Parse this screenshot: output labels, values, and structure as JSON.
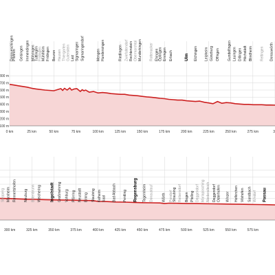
{
  "chart_data": [
    {
      "type": "area",
      "title": "",
      "xlabel": "",
      "ylabel": "",
      "xlim": [
        0,
        300
      ],
      "ylim": [
        100,
        800
      ],
      "x_ticks": [
        "0 km",
        "25 km",
        "50 km",
        "75 km",
        "100 km",
        "125 km",
        "150 km",
        "175 km",
        "200 km",
        "225 km",
        "250 km",
        "275 km",
        "30"
      ],
      "y_ticks": [
        "100 m",
        "200 m",
        "300 m",
        "400 m",
        "500 m",
        "600 m",
        "700 m",
        "800 m"
      ],
      "x_tick_values": [
        0,
        25,
        50,
        75,
        100,
        125,
        150,
        175,
        200,
        225,
        250,
        275,
        300
      ],
      "y_tick_values": [
        100,
        200,
        300,
        400,
        500,
        600,
        700,
        800
      ],
      "grid": true,
      "colors": {
        "line": "#cc1f1f",
        "fill": "#f7d6d6"
      },
      "series": [
        {
          "x": [
            0,
            5,
            10,
            20,
            25,
            30,
            40,
            45,
            50,
            55,
            58,
            60,
            62,
            65,
            68,
            70,
            73,
            76,
            80,
            82,
            84,
            86,
            90,
            95,
            100,
            105,
            110,
            115,
            120,
            125,
            130,
            135,
            140,
            145,
            150,
            155,
            160,
            165,
            170,
            175,
            180,
            185,
            190,
            195,
            200,
            205,
            210,
            215,
            220,
            225,
            230,
            235,
            240,
            245,
            250,
            255,
            260,
            265,
            270,
            275,
            280,
            285,
            290,
            295,
            300
          ],
          "y": [
            680,
            670,
            660,
            640,
            625,
            615,
            600,
            595,
            590,
            610,
            620,
            595,
            625,
            600,
            630,
            600,
            615,
            620,
            580,
            605,
            590,
            600,
            570,
            580,
            560,
            565,
            560,
            550,
            545,
            540,
            540,
            530,
            525,
            520,
            512,
            505,
            500,
            492,
            485,
            480,
            470,
            465,
            460,
            460,
            450,
            445,
            440,
            445,
            430,
            420,
            410,
            440,
            415,
            425,
            420,
            410,
            405,
            400,
            400,
            395,
            395,
            395,
            390,
            390,
            388
          ]
        }
      ],
      "towns": [
        {
          "km": 2,
          "name": "Donaueschingen",
          "style": "normal"
        },
        {
          "km": 5,
          "name": "Pfohren",
          "style": "normal"
        },
        {
          "km": 13,
          "name": "Geisingen",
          "style": "normal"
        },
        {
          "km": 20,
          "name": "Immendingen",
          "style": "normal"
        },
        {
          "km": 26,
          "name": "Möhringen",
          "style": "normal"
        },
        {
          "km": 30,
          "name": "Tuttlingen",
          "style": "normal"
        },
        {
          "km": 34,
          "name": "Fridingen",
          "style": "minor"
        },
        {
          "km": 38,
          "name": "Mühlheim",
          "style": "normal"
        },
        {
          "km": 43,
          "name": "Fridingen",
          "style": "normal"
        },
        {
          "km": 50,
          "name": "Beuron",
          "style": "normal"
        },
        {
          "km": 56,
          "name": "Hausen",
          "style": "minor"
        },
        {
          "km": 61,
          "name": "Thiergarten",
          "style": "minor"
        },
        {
          "km": 66,
          "name": "Gutenstein",
          "style": "minor"
        },
        {
          "km": 71,
          "name": "Laiz",
          "style": "normal"
        },
        {
          "km": 76,
          "name": "Sigmaringen",
          "style": "normal"
        },
        {
          "km": 82,
          "name": "Sigmaringendorf",
          "style": "normal"
        },
        {
          "km": 100,
          "name": "Mengen",
          "style": "normal"
        },
        {
          "km": 105,
          "name": "Hundersingen",
          "style": "normal"
        },
        {
          "km": 125,
          "name": "Riedlingen",
          "style": "normal"
        },
        {
          "km": 132,
          "name": "Zwiefaltendorf",
          "style": "minor"
        },
        {
          "km": 137,
          "name": "Rechtenstein",
          "style": "normal"
        },
        {
          "km": 142,
          "name": "Obermarchtal",
          "style": "minor"
        },
        {
          "km": 147,
          "name": "Munderkingen",
          "style": "normal"
        },
        {
          "km": 160,
          "name": "Rottenacker",
          "style": "minor"
        },
        {
          "km": 166,
          "name": "Ehingen",
          "style": "normal"
        },
        {
          "km": 170,
          "name": "Öpfingen",
          "style": "normal"
        },
        {
          "km": 175,
          "name": "Ersingen",
          "style": "normal"
        },
        {
          "km": 182,
          "name": "Erbach",
          "style": "normal"
        },
        {
          "km": 200,
          "name": "Ulm",
          "style": "major"
        },
        {
          "km": 210,
          "name": "Elchingen",
          "style": "normal"
        },
        {
          "km": 222,
          "name": "Leipheim",
          "style": "normal"
        },
        {
          "km": 228,
          "name": "Günzburg",
          "style": "normal"
        },
        {
          "km": 235,
          "name": "Offingen",
          "style": "normal"
        },
        {
          "km": 248,
          "name": "Gundelfingen",
          "style": "normal"
        },
        {
          "km": 254,
          "name": "Lauingen",
          "style": "normal"
        },
        {
          "km": 260,
          "name": "Dillingen",
          "style": "normal"
        },
        {
          "km": 266,
          "name": "Höchstädt",
          "style": "normal"
        },
        {
          "km": 272,
          "name": "Blindheim",
          "style": "normal"
        },
        {
          "km": 285,
          "name": "Rettingen",
          "style": "minor"
        },
        {
          "km": 296,
          "name": "Donauwörth",
          "style": "normal"
        }
      ]
    },
    {
      "type": "area",
      "title": "",
      "xlabel": "",
      "ylabel": "",
      "xlim": [
        275,
        600
      ],
      "x_ticks": [
        "300 km",
        "325 km",
        "350 km",
        "375 km",
        "400 km",
        "425 km",
        "450 km",
        "475 km",
        "500 km",
        "525 km",
        "550 km",
        "575 km"
      ],
      "x_tick_values": [
        300,
        325,
        350,
        375,
        400,
        425,
        450,
        475,
        500,
        525,
        550,
        575
      ],
      "grid": true,
      "colors": {
        "line": "#cc1f1f",
        "fill": "#f7d6d6"
      },
      "series": [
        {
          "x": [
            275,
            290,
            300,
            310,
            320,
            330,
            340,
            350,
            360,
            370,
            380,
            390,
            395,
            400,
            410,
            420,
            430,
            440,
            450,
            460,
            470,
            475,
            480,
            490,
            500,
            510,
            520,
            530,
            540,
            550,
            560,
            570,
            580,
            590,
            600
          ],
          "y": [
            405,
            402,
            400,
            395,
            390,
            388,
            385,
            382,
            380,
            378,
            375,
            372,
            370,
            360,
            358,
            352,
            350,
            346,
            342,
            340,
            338,
            330,
            336,
            334,
            330,
            330,
            328,
            326,
            324,
            322,
            320,
            318,
            316,
            314,
            312
          ]
        }
      ],
      "towns": [
        {
          "km": 280,
          "name": "Donauwörth",
          "style": "normal"
        },
        {
          "km": 292,
          "name": "Stepperg",
          "style": "minor"
        },
        {
          "km": 298,
          "name": "Marxheim",
          "style": "normal"
        },
        {
          "km": 305,
          "name": "Rennertshofen",
          "style": "normal"
        },
        {
          "km": 318,
          "name": "Neuburg",
          "style": "normal"
        },
        {
          "km": 326,
          "name": "Bittenbrunn",
          "style": "minor"
        },
        {
          "km": 333,
          "name": "Weichering",
          "style": "normal"
        },
        {
          "km": 348,
          "name": "Ingolstadt",
          "style": "major"
        },
        {
          "km": 356,
          "name": "Großmehring",
          "style": "normal"
        },
        {
          "km": 364,
          "name": "Vohburg",
          "style": "normal"
        },
        {
          "km": 372,
          "name": "Pförring",
          "style": "normal"
        },
        {
          "km": 379,
          "name": "Neustadt",
          "style": "normal"
        },
        {
          "km": 386,
          "name": "Eining",
          "style": "normal"
        },
        {
          "km": 394,
          "name": "Staubing",
          "style": "normal"
        },
        {
          "km": 401,
          "name": "Kelheim",
          "style": "normal"
        },
        {
          "km": 406,
          "name": "Saal",
          "style": "normal"
        },
        {
          "km": 418,
          "name": "Bad Abbach",
          "style": "normal"
        },
        {
          "km": 430,
          "name": "Pentling",
          "style": "normal"
        },
        {
          "km": 442,
          "name": "Regensburg",
          "style": "major"
        },
        {
          "km": 452,
          "name": "Tegernheim",
          "style": "normal"
        },
        {
          "km": 460,
          "name": "Donaustauf",
          "style": "minor"
        },
        {
          "km": 474,
          "name": "Wörth",
          "style": "normal"
        },
        {
          "km": 482,
          "name": "Pondorf",
          "style": "minor"
        },
        {
          "km": 486,
          "name": "Straubing",
          "style": "normal"
        },
        {
          "km": 492,
          "name": "Reibersdorf",
          "style": "minor"
        },
        {
          "km": 500,
          "name": "Bogen",
          "style": "normal"
        },
        {
          "km": 506,
          "name": "Pfelling",
          "style": "normal"
        },
        {
          "km": 512,
          "name": "Deggendorf",
          "style": "minor"
        },
        {
          "km": 518,
          "name": "Mariaposching",
          "style": "minor"
        },
        {
          "km": 524,
          "name": "Niederalteich",
          "style": "minor"
        },
        {
          "km": 531,
          "name": "Deggendorf",
          "style": "normal"
        },
        {
          "km": 536,
          "name": "Osterhofen",
          "style": "normal"
        },
        {
          "km": 546,
          "name": "Winzer",
          "style": "normal"
        },
        {
          "km": 556,
          "name": "Hofkirchen",
          "style": "normal"
        },
        {
          "km": 563,
          "name": "Vilshofen",
          "style": "normal"
        },
        {
          "km": 571,
          "name": "Sandbach",
          "style": "normal"
        },
        {
          "km": 577,
          "name": "Windorf",
          "style": "minor"
        },
        {
          "km": 588,
          "name": "Passau",
          "style": "major"
        }
      ]
    }
  ]
}
